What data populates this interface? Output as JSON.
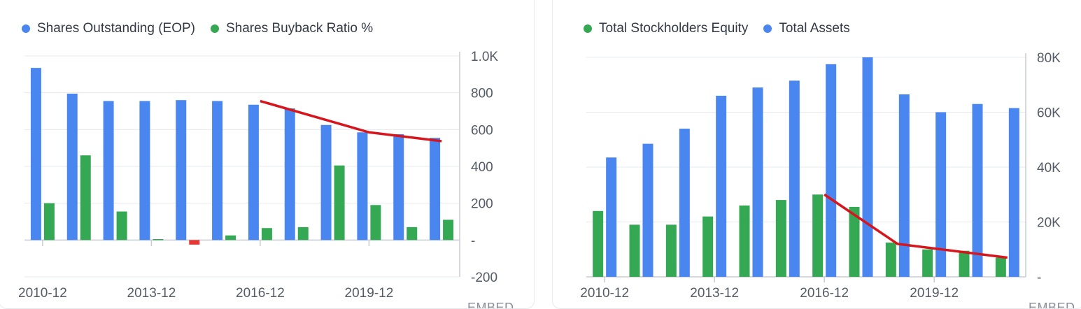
{
  "footer": {
    "embed_label": "EMBED"
  },
  "colors": {
    "blue": "#4a86f0",
    "green": "#34a853",
    "red": "#e53935",
    "trend": "#d6151c",
    "grid": "#e7e9ee",
    "axis": "#c7ccd4"
  },
  "chart_data": [
    {
      "type": "bar",
      "legend": [
        {
          "name": "Shares Outstanding (EOP)",
          "color": "#4a86f0"
        },
        {
          "name": "Shares Buyback Ratio %",
          "color": "#34a853"
        }
      ],
      "categories": [
        "2010-12",
        "2011-12",
        "2012-12",
        "2013-12",
        "2014-12",
        "2015-12",
        "2016-12",
        "2017-12",
        "2018-12",
        "2019-12",
        "2020-12",
        "2021-12"
      ],
      "x_tick_labels": [
        "2010-12",
        "2013-12",
        "2016-12",
        "2019-12"
      ],
      "y_tick_labels": [
        "1.0K",
        "800",
        "600",
        "400",
        "200",
        "-",
        "-200"
      ],
      "ylim": [
        -200,
        1000
      ],
      "grid": true,
      "series": [
        {
          "name": "Shares Outstanding (EOP)",
          "color": "#4a86f0",
          "values": [
            935,
            795,
            755,
            755,
            760,
            755,
            735,
            715,
            625,
            585,
            575,
            555
          ]
        },
        {
          "name": "Shares Buyback Ratio %",
          "color": "#34a853",
          "negative_color": "#e53935",
          "values": [
            200,
            460,
            155,
            5,
            -25,
            25,
            65,
            70,
            405,
            190,
            70,
            110
          ]
        }
      ],
      "trend_line": {
        "color": "#d6151c",
        "x": [
          "2016-12",
          "2019-12",
          "2021-12"
        ],
        "y": [
          755,
          585,
          537
        ]
      }
    },
    {
      "type": "bar",
      "legend": [
        {
          "name": "Total Stockholders Equity",
          "color": "#34a853"
        },
        {
          "name": "Total Assets",
          "color": "#4a86f0"
        }
      ],
      "categories": [
        "2010-12",
        "2011-12",
        "2012-12",
        "2013-12",
        "2014-12",
        "2015-12",
        "2016-12",
        "2017-12",
        "2018-12",
        "2019-12",
        "2020-12",
        "2021-12"
      ],
      "x_tick_labels": [
        "2010-12",
        "2013-12",
        "2016-12",
        "2019-12"
      ],
      "y_tick_labels": [
        "80K",
        "60K",
        "40K",
        "20K",
        "-"
      ],
      "ylim": [
        0,
        80000
      ],
      "grid": true,
      "series": [
        {
          "name": "Total Stockholders Equity",
          "color": "#34a853",
          "values": [
            24000,
            19000,
            19000,
            22000,
            26000,
            28000,
            30000,
            25500,
            12500,
            10000,
            9500,
            7000
          ]
        },
        {
          "name": "Total Assets",
          "color": "#4a86f0",
          "values": [
            43500,
            48500,
            54000,
            66000,
            69000,
            71500,
            77500,
            80000,
            66500,
            60000,
            63000,
            61500
          ]
        }
      ],
      "trend_line": {
        "color": "#d6151c",
        "x": [
          "2016-12",
          "2018-12",
          "2021-12"
        ],
        "y": [
          30000,
          12000,
          7000
        ]
      }
    }
  ]
}
